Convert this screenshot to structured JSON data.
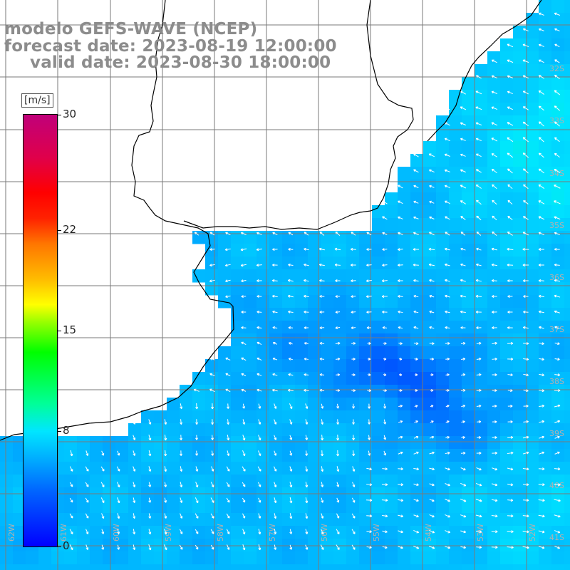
{
  "header": {
    "model": "modelo GEFS-WAVE (NCEP)",
    "forecast": "forecast date: 2023-08-19 12:00:00",
    "valid": "valid date: 2023-08-30 18:00:00"
  },
  "colorbar": {
    "unit": "[m/s]",
    "ticks": [
      {
        "value": 0,
        "label": "0"
      },
      {
        "value": 8,
        "label": "8"
      },
      {
        "value": 15,
        "label": "15"
      },
      {
        "value": 22,
        "label": "22"
      },
      {
        "value": 30,
        "label": "30"
      }
    ],
    "range": [
      0,
      30
    ],
    "colors": [
      "#0000ff",
      "#00aaff",
      "#00ffff",
      "#00ff00",
      "#ffff00",
      "#ff0000",
      "#c0007a"
    ]
  },
  "map": {
    "lat_labels": [
      "32S",
      "33S",
      "34S",
      "35S",
      "36S",
      "37S",
      "38S",
      "39S",
      "40S",
      "41S"
    ],
    "lon_labels": [
      "62W",
      "61W",
      "60W",
      "59W",
      "58W",
      "57W",
      "56W",
      "55W",
      "54W",
      "53W",
      "52W"
    ],
    "colors": {
      "land": "#ffffff",
      "grid": "#7a7a7a",
      "coast": "#000000",
      "arrow": "#ffffff"
    }
  }
}
